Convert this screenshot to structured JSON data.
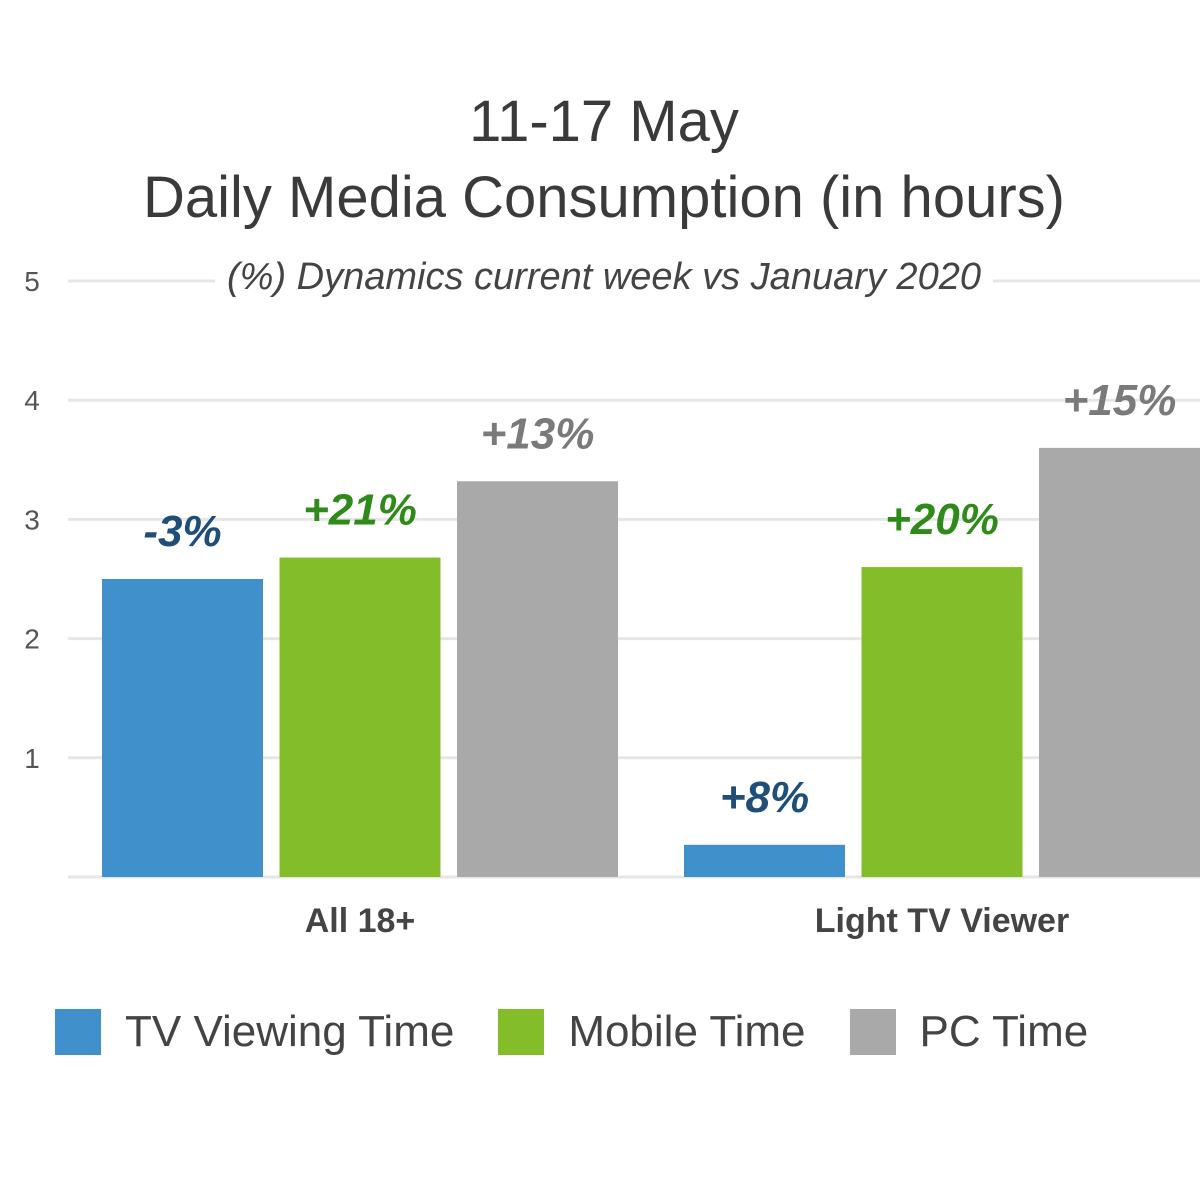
{
  "chart_data": {
    "type": "bar",
    "title": "11-17 May",
    "title_line2": "Daily Media Consumption (in hours)",
    "subtitle": "(%) Dynamics current week  vs January 2020",
    "categories": [
      "All 18+",
      "Light TV Viewer"
    ],
    "series": [
      {
        "name": "TV Viewing Time",
        "color": "#4090cc",
        "label_color": "#1f4e79",
        "values": [
          2.5,
          0.27
        ],
        "labels": [
          "-3%",
          "+8%"
        ]
      },
      {
        "name": "Mobile Time",
        "color": "#84bd2a",
        "label_color": "#2e8b1a",
        "values": [
          2.68,
          2.6
        ],
        "labels": [
          "+21%",
          "+20%"
        ]
      },
      {
        "name": "PC Time",
        "color": "#a9a9a9",
        "label_color": "#7a7a7a",
        "values": [
          3.32,
          3.6
        ],
        "labels": [
          "+13%",
          "+15%"
        ]
      }
    ],
    "ylim": [
      0,
      5
    ],
    "yticks": [
      1,
      2,
      3,
      4,
      5
    ],
    "grid": true,
    "legend_position": "bottom"
  }
}
